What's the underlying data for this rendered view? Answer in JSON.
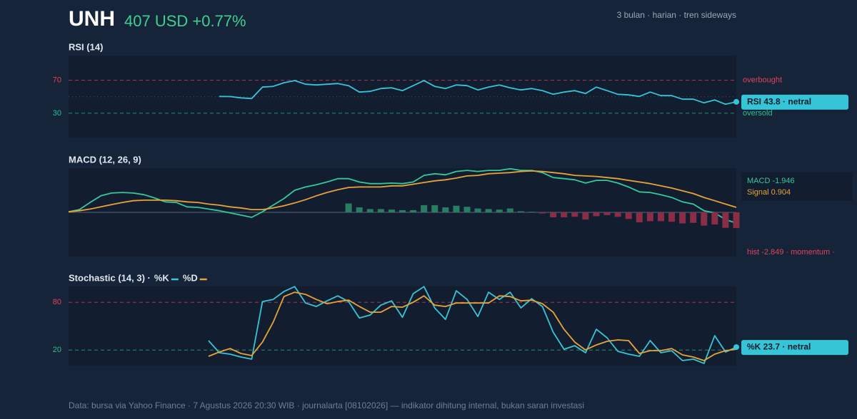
{
  "header": {
    "ticker": "UNH",
    "price": "407 USD +0.77%",
    "subtitle": "3 bulan · harian · tren sideways"
  },
  "chart_data": [
    {
      "type": "line",
      "title": "RSI (14)",
      "ylim": [
        0,
        100
      ],
      "yticks": [
        70,
        30
      ],
      "tick_colors": [
        "#e0435b",
        "#2fbf8a"
      ],
      "midline": true,
      "annotations": [
        "overbought",
        "oversold"
      ],
      "last_label": "RSI 43.8 · netral",
      "categories": [
        null,
        null,
        null,
        null,
        null,
        null,
        null,
        null,
        null,
        null,
        null,
        null,
        null,
        null,
        null,
        null,
        null,
        null,
        null,
        null,
        null,
        null,
        null,
        null,
        null,
        null,
        null,
        null,
        null,
        null,
        null,
        null,
        null,
        null,
        null,
        null,
        null,
        null,
        null,
        null,
        null,
        null,
        null,
        null,
        null,
        null,
        null,
        null,
        null,
        null,
        null,
        null,
        null,
        null,
        null,
        null,
        null,
        null,
        null,
        null,
        null,
        null,
        null
      ],
      "series": [
        {
          "color": "#36c5d6",
          "values": [
            null,
            null,
            null,
            null,
            null,
            null,
            null,
            null,
            null,
            null,
            null,
            null,
            null,
            null,
            50.4,
            50.2,
            48.7,
            47.8,
            61.7,
            62.6,
            67.0,
            69.6,
            65.2,
            64.3,
            65.2,
            66.1,
            63.5,
            55.7,
            56.5,
            60.0,
            60.9,
            57.4,
            63.5,
            69.6,
            62.6,
            60.0,
            64.3,
            63.5,
            58.3,
            61.7,
            64.3,
            60.9,
            58.3,
            60.0,
            57.4,
            53.0,
            55.7,
            57.4,
            53.9,
            61.7,
            57.4,
            53.0,
            52.2,
            50.4,
            55.7,
            51.3,
            51.3,
            47.0,
            47.0,
            42.6,
            46.1,
            40.9,
            43.8
          ]
        }
      ]
    },
    {
      "type": "line",
      "title": "MACD (12, 26, 9)",
      "ylim": [
        -8,
        8
      ],
      "zero_line": true,
      "legend": "box",
      "categories": [
        null,
        null,
        null,
        null,
        null,
        null,
        null,
        null,
        null,
        null,
        null,
        null,
        null,
        null,
        null,
        null,
        null,
        null,
        null,
        null,
        null,
        null,
        null,
        null,
        null,
        null,
        null,
        null,
        null,
        null,
        null,
        null,
        null,
        null,
        null,
        null,
        null,
        null,
        null,
        null,
        null,
        null,
        null,
        null,
        null,
        null,
        null,
        null,
        null,
        null,
        null,
        null,
        null,
        null,
        null,
        null,
        null,
        null,
        null,
        null,
        null,
        null,
        null
      ],
      "series": [
        {
          "name": "MACD -1.946",
          "kind": "line",
          "color": "#34c99b",
          "values": [
            0.1,
            0.5,
            1.8,
            3.0,
            3.5,
            3.6,
            3.5,
            3.2,
            2.6,
            1.9,
            1.8,
            1.0,
            0.9,
            0.6,
            0.3,
            -0.1,
            -0.5,
            -0.9,
            0.1,
            1.3,
            2.5,
            4.0,
            4.6,
            5.0,
            5.5,
            6.1,
            6.1,
            5.5,
            5.2,
            5.2,
            5.3,
            5.2,
            5.5,
            6.7,
            7.0,
            6.8,
            7.4,
            7.6,
            7.4,
            7.6,
            7.6,
            7.9,
            7.6,
            7.6,
            7.2,
            6.3,
            6.1,
            5.9,
            5.3,
            5.8,
            5.8,
            5.3,
            4.6,
            3.7,
            3.6,
            3.2,
            2.7,
            1.9,
            1.5,
            0.3,
            -0.1,
            -1.3,
            -1.946
          ]
        },
        {
          "name": "Signal 0.904",
          "kind": "line",
          "color": "#e8a23a",
          "values": [
            0.1,
            0.3,
            0.6,
            1.0,
            1.4,
            1.8,
            2.1,
            2.2,
            2.2,
            2.2,
            2.1,
            1.9,
            1.8,
            1.5,
            1.3,
            1.0,
            0.8,
            0.5,
            0.5,
            0.8,
            1.2,
            1.7,
            2.3,
            3.0,
            3.6,
            4.1,
            4.5,
            4.6,
            4.6,
            4.6,
            4.8,
            4.8,
            5.1,
            5.4,
            5.7,
            5.9,
            6.2,
            6.6,
            6.7,
            7.0,
            7.1,
            7.2,
            7.4,
            7.5,
            7.4,
            7.2,
            7.0,
            6.7,
            6.6,
            6.5,
            6.3,
            6.1,
            5.8,
            5.5,
            5.2,
            4.8,
            4.4,
            3.9,
            3.4,
            2.7,
            2.1,
            1.5,
            0.904
          ]
        },
        {
          "name": "hist -2.849 · momentum ·",
          "kind": "bar",
          "color": "#2a7d63",
          "negative_color": "#8a2e48",
          "label_color": "#e0435b",
          "values": [
            null,
            null,
            null,
            null,
            null,
            null,
            null,
            null,
            null,
            null,
            null,
            null,
            null,
            null,
            null,
            null,
            null,
            null,
            null,
            null,
            null,
            null,
            null,
            null,
            null,
            null,
            1.6,
            0.9,
            0.6,
            0.6,
            0.5,
            0.4,
            0.4,
            1.3,
            1.3,
            0.9,
            1.2,
            1.0,
            0.7,
            0.6,
            0.5,
            0.7,
            0.2,
            0.1,
            -0.2,
            -0.9,
            -0.9,
            -0.8,
            -1.3,
            -0.7,
            -0.5,
            -0.8,
            -1.2,
            -1.8,
            -1.6,
            -1.6,
            -1.7,
            -2.0,
            -1.9,
            -2.4,
            -2.2,
            -2.8,
            -2.849
          ]
        }
      ]
    },
    {
      "type": "line",
      "title": "Stochastic (14, 3) ·",
      "ylim": [
        0,
        100
      ],
      "yticks": [
        80,
        20
      ],
      "tick_colors": [
        "#e0435b",
        "#2fbf8a"
      ],
      "legend": "title",
      "last_label": "%K 23.7 · netral",
      "categories": [
        null,
        null,
        null,
        null,
        null,
        null,
        null,
        null,
        null,
        null,
        null,
        null,
        null,
        null,
        null,
        null,
        null,
        null,
        null,
        null,
        null,
        null,
        null,
        null,
        null,
        null,
        null,
        null,
        null,
        null,
        null,
        null,
        null,
        null,
        null,
        null,
        null,
        null,
        null,
        null,
        null,
        null,
        null,
        null,
        null,
        null,
        null,
        null,
        null,
        null,
        null,
        null,
        null,
        null,
        null,
        null,
        null,
        null,
        null,
        null,
        null,
        null,
        null
      ],
      "series": [
        {
          "name": "%K",
          "kind": "line",
          "color": "#36c5d6",
          "values": [
            null,
            null,
            null,
            null,
            null,
            null,
            null,
            null,
            null,
            null,
            null,
            null,
            null,
            31.8,
            16.6,
            14.8,
            11.2,
            8.5,
            81.0,
            83.7,
            93.6,
            99.8,
            79.2,
            74.8,
            81.9,
            88.2,
            81.0,
            60.4,
            64.0,
            76.5,
            81.9,
            61.3,
            90.9,
            99.8,
            73.0,
            58.6,
            94.5,
            83.7,
            62.2,
            92.7,
            83.7,
            92.7,
            73.0,
            84.6,
            74.8,
            42.5,
            21.0,
            25.5,
            16.6,
            46.1,
            35.4,
            18.4,
            14.8,
            12.1,
            31.8,
            16.6,
            19.2,
            6.7,
            8.5,
            3.1,
            38.0,
            17.5,
            23.7
          ]
        },
        {
          "name": "%D",
          "kind": "line",
          "color": "#e8a23a",
          "values": [
            null,
            null,
            null,
            null,
            null,
            null,
            null,
            null,
            null,
            null,
            null,
            null,
            null,
            12.1,
            17.5,
            21.9,
            15.7,
            13.0,
            30.0,
            55.0,
            87.3,
            92.7,
            90.0,
            83.7,
            78.3,
            81.0,
            82.8,
            74.8,
            67.6,
            67.6,
            74.8,
            73.9,
            80.1,
            88.2,
            76.5,
            74.8,
            79.2,
            79.2,
            79.2,
            79.2,
            88.2,
            87.3,
            81.9,
            82.8,
            78.3,
            67.6,
            46.1,
            30.0,
            20.1,
            26.4,
            30.9,
            32.7,
            31.8,
            15.7,
            19.2,
            19.2,
            21.9,
            13.9,
            11.2,
            6.7,
            14.8,
            19.2,
            21.0
          ]
        }
      ]
    }
  ],
  "footer": "Data: bursa via Yahoo Finance · 7 Agustus 2026 20:30 WIB · journalarta [08102026] — indikator dihitung internal, bukan saran investasi"
}
